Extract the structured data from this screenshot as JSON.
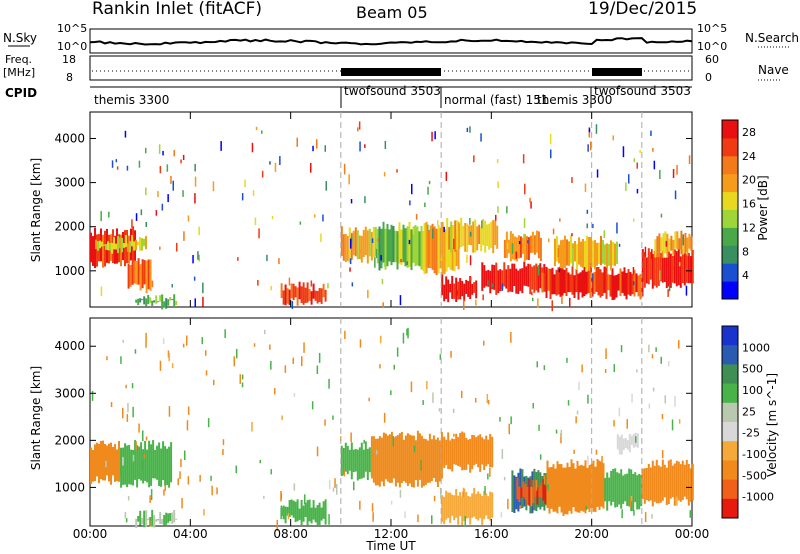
{
  "header": {
    "station": "Rankin Inlet (fitACF)",
    "beam": "Beam 05",
    "date": "19/Dec/2015"
  },
  "panels": {
    "nsky": {
      "label": "N.Sky",
      "right_label": "N.Search",
      "ticks": [
        "10^5",
        "10^0"
      ]
    },
    "freq": {
      "label_line1": "Freq.",
      "label_line2": "[MHz]",
      "right_label": "Nave",
      "left_ticks": [
        "18",
        "8"
      ],
      "right_ticks": [
        "60",
        "0"
      ]
    },
    "cpid": {
      "label": "CPID",
      "programs": [
        {
          "name": "themis 3300",
          "start_h": 0
        },
        {
          "name": "twofsound 3503",
          "start_h": 10
        },
        {
          "name": "normal (fast) 151",
          "start_h": 14
        },
        {
          "name": "themis 3300",
          "start_h": 20
        },
        {
          "name": "twofsound 3503",
          "start_h": 22
        }
      ]
    }
  },
  "colors": {
    "power": [
      "#0000ff",
      "#1a4fd0",
      "#3a8f60",
      "#4aa84a",
      "#9ed63a",
      "#e8d820",
      "#f59c1c",
      "#f27a1a",
      "#ef3a14",
      "#e81010"
    ],
    "velocity": [
      "#1933cc",
      "#2a5bb0",
      "#3f8f55",
      "#49b34a",
      "#b9c9b0",
      "#d8d8d8",
      "#f4a93a",
      "#f08a1c",
      "#f06018",
      "#e81a10"
    ]
  },
  "chart_data": [
    {
      "type": "heatmap",
      "title": "Power",
      "xlabel": "Time UT",
      "ylabel": "Slant Range [km]",
      "xlim": [
        "00:00",
        "24:00"
      ],
      "ylim": [
        180,
        4600
      ],
      "x_ticks": [
        "00:00",
        "04:00",
        "08:00",
        "12:00",
        "16:00",
        "20:00",
        "00:00"
      ],
      "y_ticks": [
        1000,
        2000,
        3000,
        4000
      ],
      "colorbar_label": "Power [dB]",
      "colorbar_ticks": [
        "4",
        "8",
        "12",
        "16",
        "20",
        "24",
        "28"
      ],
      "colorbar_range": [
        0,
        30
      ],
      "series": [
        {
          "t0": 0.0,
          "t1": 1.8,
          "r0": 1150,
          "r1": 1900,
          "value": 26
        },
        {
          "t0": 0.2,
          "t1": 2.2,
          "r0": 1500,
          "r1": 1700,
          "value": 16
        },
        {
          "t0": 1.5,
          "t1": 2.4,
          "r0": 600,
          "r1": 1200,
          "value": 22
        },
        {
          "t0": 1.8,
          "t1": 3.4,
          "r0": 230,
          "r1": 420,
          "value": 10
        },
        {
          "t0": 7.6,
          "t1": 9.4,
          "r0": 300,
          "r1": 650,
          "value": 26
        },
        {
          "t0": 10.0,
          "t1": 11.5,
          "r0": 1250,
          "r1": 1900,
          "value": 18
        },
        {
          "t0": 11.5,
          "t1": 13.5,
          "r0": 1100,
          "r1": 2000,
          "value": 12
        },
        {
          "t0": 13.3,
          "t1": 14.7,
          "r0": 1000,
          "r1": 2000,
          "value": 20
        },
        {
          "t0": 14.2,
          "t1": 16.2,
          "r0": 1500,
          "r1": 2100,
          "value": 18
        },
        {
          "t0": 14.0,
          "t1": 15.4,
          "r0": 400,
          "r1": 800,
          "value": 28
        },
        {
          "t0": 15.6,
          "t1": 18.2,
          "r0": 550,
          "r1": 1100,
          "value": 28
        },
        {
          "t0": 16.5,
          "t1": 18.0,
          "r0": 1300,
          "r1": 1800,
          "value": 22
        },
        {
          "t0": 18.0,
          "t1": 22.0,
          "r0": 450,
          "r1": 1000,
          "value": 27
        },
        {
          "t0": 18.5,
          "t1": 21.0,
          "r0": 1100,
          "r1": 1700,
          "value": 18
        },
        {
          "t0": 22.0,
          "t1": 24.0,
          "r0": 700,
          "r1": 1400,
          "value": 28
        },
        {
          "t0": 22.5,
          "t1": 24.0,
          "r0": 1400,
          "r1": 1800,
          "value": 20
        }
      ]
    },
    {
      "type": "heatmap",
      "title": "Velocity",
      "xlabel": "Time UT",
      "ylabel": "Slant Range [km]",
      "xlim": [
        "00:00",
        "24:00"
      ],
      "ylim": [
        180,
        4600
      ],
      "x_ticks": [
        "00:00",
        "04:00",
        "08:00",
        "12:00",
        "16:00",
        "20:00",
        "00:00"
      ],
      "y_ticks": [
        1000,
        2000,
        3000,
        4000
      ],
      "colorbar_label": "Velocity [m s^-1]",
      "colorbar_ticks": [
        "1000",
        "500",
        "100",
        "25",
        "-25",
        "-100",
        "-500",
        "-1000"
      ],
      "series": [
        {
          "t0": 0.0,
          "t1": 1.2,
          "r0": 1150,
          "r1": 1900,
          "value": -300
        },
        {
          "t0": 1.2,
          "t1": 3.2,
          "r0": 1100,
          "r1": 1900,
          "value": 300
        },
        {
          "t0": 1.8,
          "t1": 3.4,
          "r0": 230,
          "r1": 420,
          "value": 100
        },
        {
          "t0": 7.6,
          "t1": 9.4,
          "r0": 300,
          "r1": 650,
          "value": 300
        },
        {
          "t0": 10.0,
          "t1": 11.2,
          "r0": 1250,
          "r1": 1900,
          "value": 200
        },
        {
          "t0": 11.2,
          "t1": 14.0,
          "r0": 1100,
          "r1": 2100,
          "value": -200
        },
        {
          "t0": 14.0,
          "t1": 16.0,
          "r0": 1400,
          "r1": 2100,
          "value": -150
        },
        {
          "t0": 14.0,
          "t1": 16.0,
          "r0": 300,
          "r1": 900,
          "value": -60
        },
        {
          "t0": 16.8,
          "t1": 18.2,
          "r0": 550,
          "r1": 1300,
          "value": 900
        },
        {
          "t0": 17.0,
          "t1": 18.8,
          "r0": 700,
          "r1": 1100,
          "value": -800
        },
        {
          "t0": 18.2,
          "t1": 20.5,
          "r0": 500,
          "r1": 1500,
          "value": -250
        },
        {
          "t0": 20.5,
          "t1": 22.0,
          "r0": 600,
          "r1": 1300,
          "value": 200
        },
        {
          "t0": 22.0,
          "t1": 24.0,
          "r0": 700,
          "r1": 1500,
          "value": -300
        },
        {
          "t0": 21.0,
          "t1": 21.8,
          "r0": 1800,
          "r1": 2100,
          "value": 10
        }
      ]
    }
  ]
}
